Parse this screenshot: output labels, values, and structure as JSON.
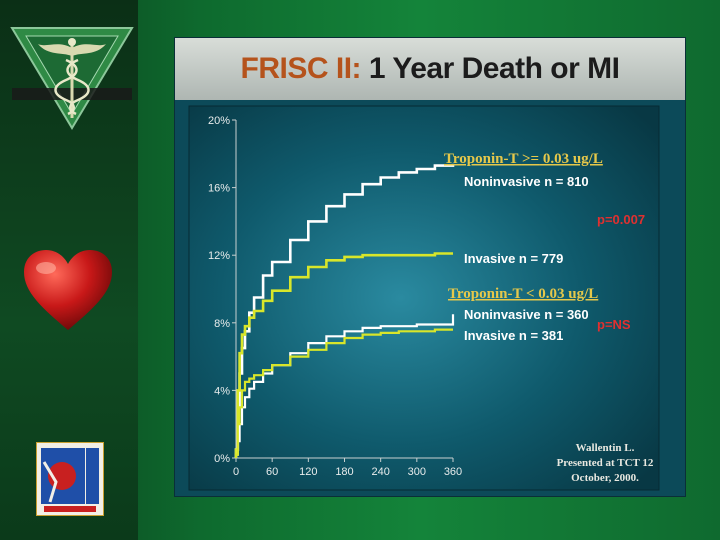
{
  "slide": {
    "title_prefix": "FRISC II:",
    "title_main": " 1 Year Death or MI"
  },
  "colors": {
    "background_green": "#14843a",
    "slide_teal": "#0c4a59",
    "title_accent": "#b5531c",
    "group_heading": "#e6c84a",
    "noninvasive_line": "#ffffff",
    "invasive_line": "#d8e62a",
    "p_value": "#e03030"
  },
  "icons": [
    "caduceus-icon",
    "heart-icon",
    "cardiovascular-group-logo"
  ],
  "chart_data": {
    "type": "line",
    "x": [
      0,
      3,
      6,
      10,
      15,
      22,
      30,
      45,
      60,
      90,
      120,
      150,
      180,
      210,
      240,
      270,
      300,
      330,
      360
    ],
    "xticks": [
      0,
      60,
      120,
      180,
      240,
      300,
      360
    ],
    "yticks": [
      0,
      4,
      8,
      12,
      16,
      20
    ],
    "ytick_labels": [
      "0%",
      "4%",
      "8%",
      "12%",
      "16%",
      "20%"
    ],
    "xlim": [
      0,
      360
    ],
    "ylim": [
      0,
      20
    ],
    "series": [
      {
        "name": "Noninvasive n = 810",
        "group": "high",
        "color": "#ffffff",
        "values": [
          0.5,
          3.0,
          5.0,
          6.5,
          7.5,
          8.6,
          9.5,
          10.8,
          11.6,
          12.9,
          14.0,
          14.9,
          15.6,
          16.2,
          16.6,
          16.9,
          17.1,
          17.3,
          17.4
        ]
      },
      {
        "name": "Invasive n = 779",
        "group": "high",
        "color": "#d8e62a",
        "values": [
          0.5,
          4.0,
          6.2,
          7.3,
          7.8,
          8.3,
          8.7,
          9.3,
          9.9,
          10.7,
          11.3,
          11.7,
          11.9,
          12.0,
          12.0,
          12.0,
          12.0,
          12.1,
          12.1
        ]
      },
      {
        "name": "Noninvasive n = 360",
        "group": "low",
        "color": "#ffffff",
        "values": [
          0.2,
          1.0,
          2.0,
          3.0,
          3.6,
          4.1,
          4.5,
          5.0,
          5.5,
          6.2,
          6.8,
          7.2,
          7.5,
          7.7,
          7.8,
          7.8,
          7.9,
          7.9,
          8.5
        ]
      },
      {
        "name": "Invasive n = 381",
        "group": "low",
        "color": "#d8e62a",
        "values": [
          0.2,
          2.0,
          3.0,
          4.0,
          4.5,
          4.7,
          4.9,
          5.2,
          5.5,
          6.0,
          6.4,
          6.8,
          7.1,
          7.3,
          7.4,
          7.5,
          7.5,
          7.6,
          7.6
        ]
      }
    ],
    "group_headings": {
      "high": {
        "prefix": "Troponin-T ",
        "op": ">=",
        "value": " 0.03 ug/L",
        "p_value": "p=0.007"
      },
      "low": {
        "prefix": "Troponin-T ",
        "op": "<",
        "value": " 0.03 ug/L",
        "p_value": "p=NS"
      }
    },
    "citation": [
      "Wallentin L.",
      "Presented at TCT 12",
      "October, 2000."
    ]
  }
}
